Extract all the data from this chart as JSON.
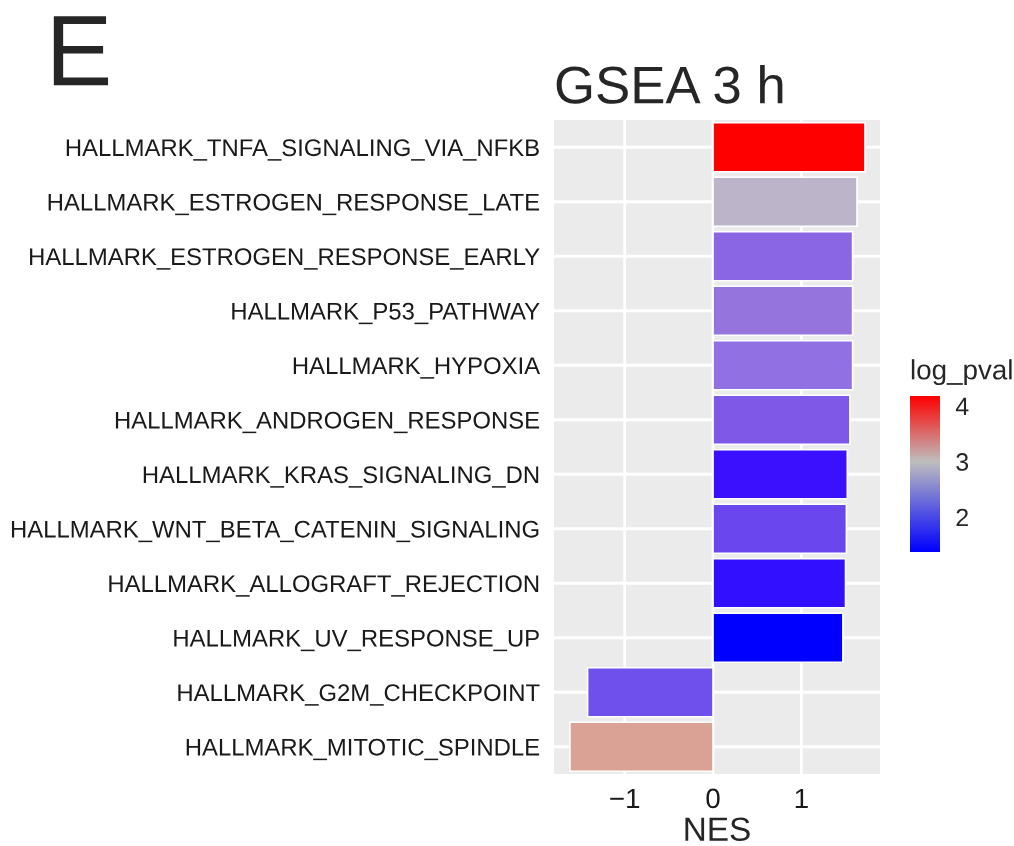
{
  "chart_data": {
    "type": "bar",
    "orientation": "horizontal",
    "title": "GSEA 3 h",
    "xlabel": "NES",
    "clabel": "log_pval",
    "annotations": [
      "E"
    ],
    "categories": [
      "HALLMARK_TNFA_SIGNALING_VIA_NFKB",
      "HALLMARK_ESTROGEN_RESPONSE_LATE",
      "HALLMARK_ESTROGEN_RESPONSE_EARLY",
      "HALLMARK_P53_PATHWAY",
      "HALLMARK_HYPOXIA",
      "HALLMARK_ANDROGEN_RESPONSE",
      "HALLMARK_KRAS_SIGNALING_DN",
      "HALLMARK_WNT_BETA_CATENIN_SIGNALING",
      "HALLMARK_ALLOGRAFT_REJECTION",
      "HALLMARK_UV_RESPONSE_UP",
      "HALLMARK_G2M_CHECKPOINT",
      "HALLMARK_MITOTIC_SPINDLE"
    ],
    "values": [
      1.72,
      1.63,
      1.58,
      1.58,
      1.58,
      1.55,
      1.52,
      1.51,
      1.5,
      1.47,
      -1.42,
      -1.62
    ],
    "colors": [
      "#ff0000",
      "#bcb4c8",
      "#8a66e4",
      "#9674de",
      "#9070e2",
      "#8058e8",
      "#3a10ff",
      "#6a46ee",
      "#3210ff",
      "#0000ff",
      "#7050ec",
      "#d9a294"
    ],
    "xlim": [
      -1.8,
      1.89
    ],
    "xticks": [
      {
        "value": -1,
        "label": "−1"
      },
      0,
      1
    ],
    "clim": [
      1.37,
      4.18
    ],
    "cticks": [
      2,
      3,
      4
    ],
    "grid": true
  }
}
